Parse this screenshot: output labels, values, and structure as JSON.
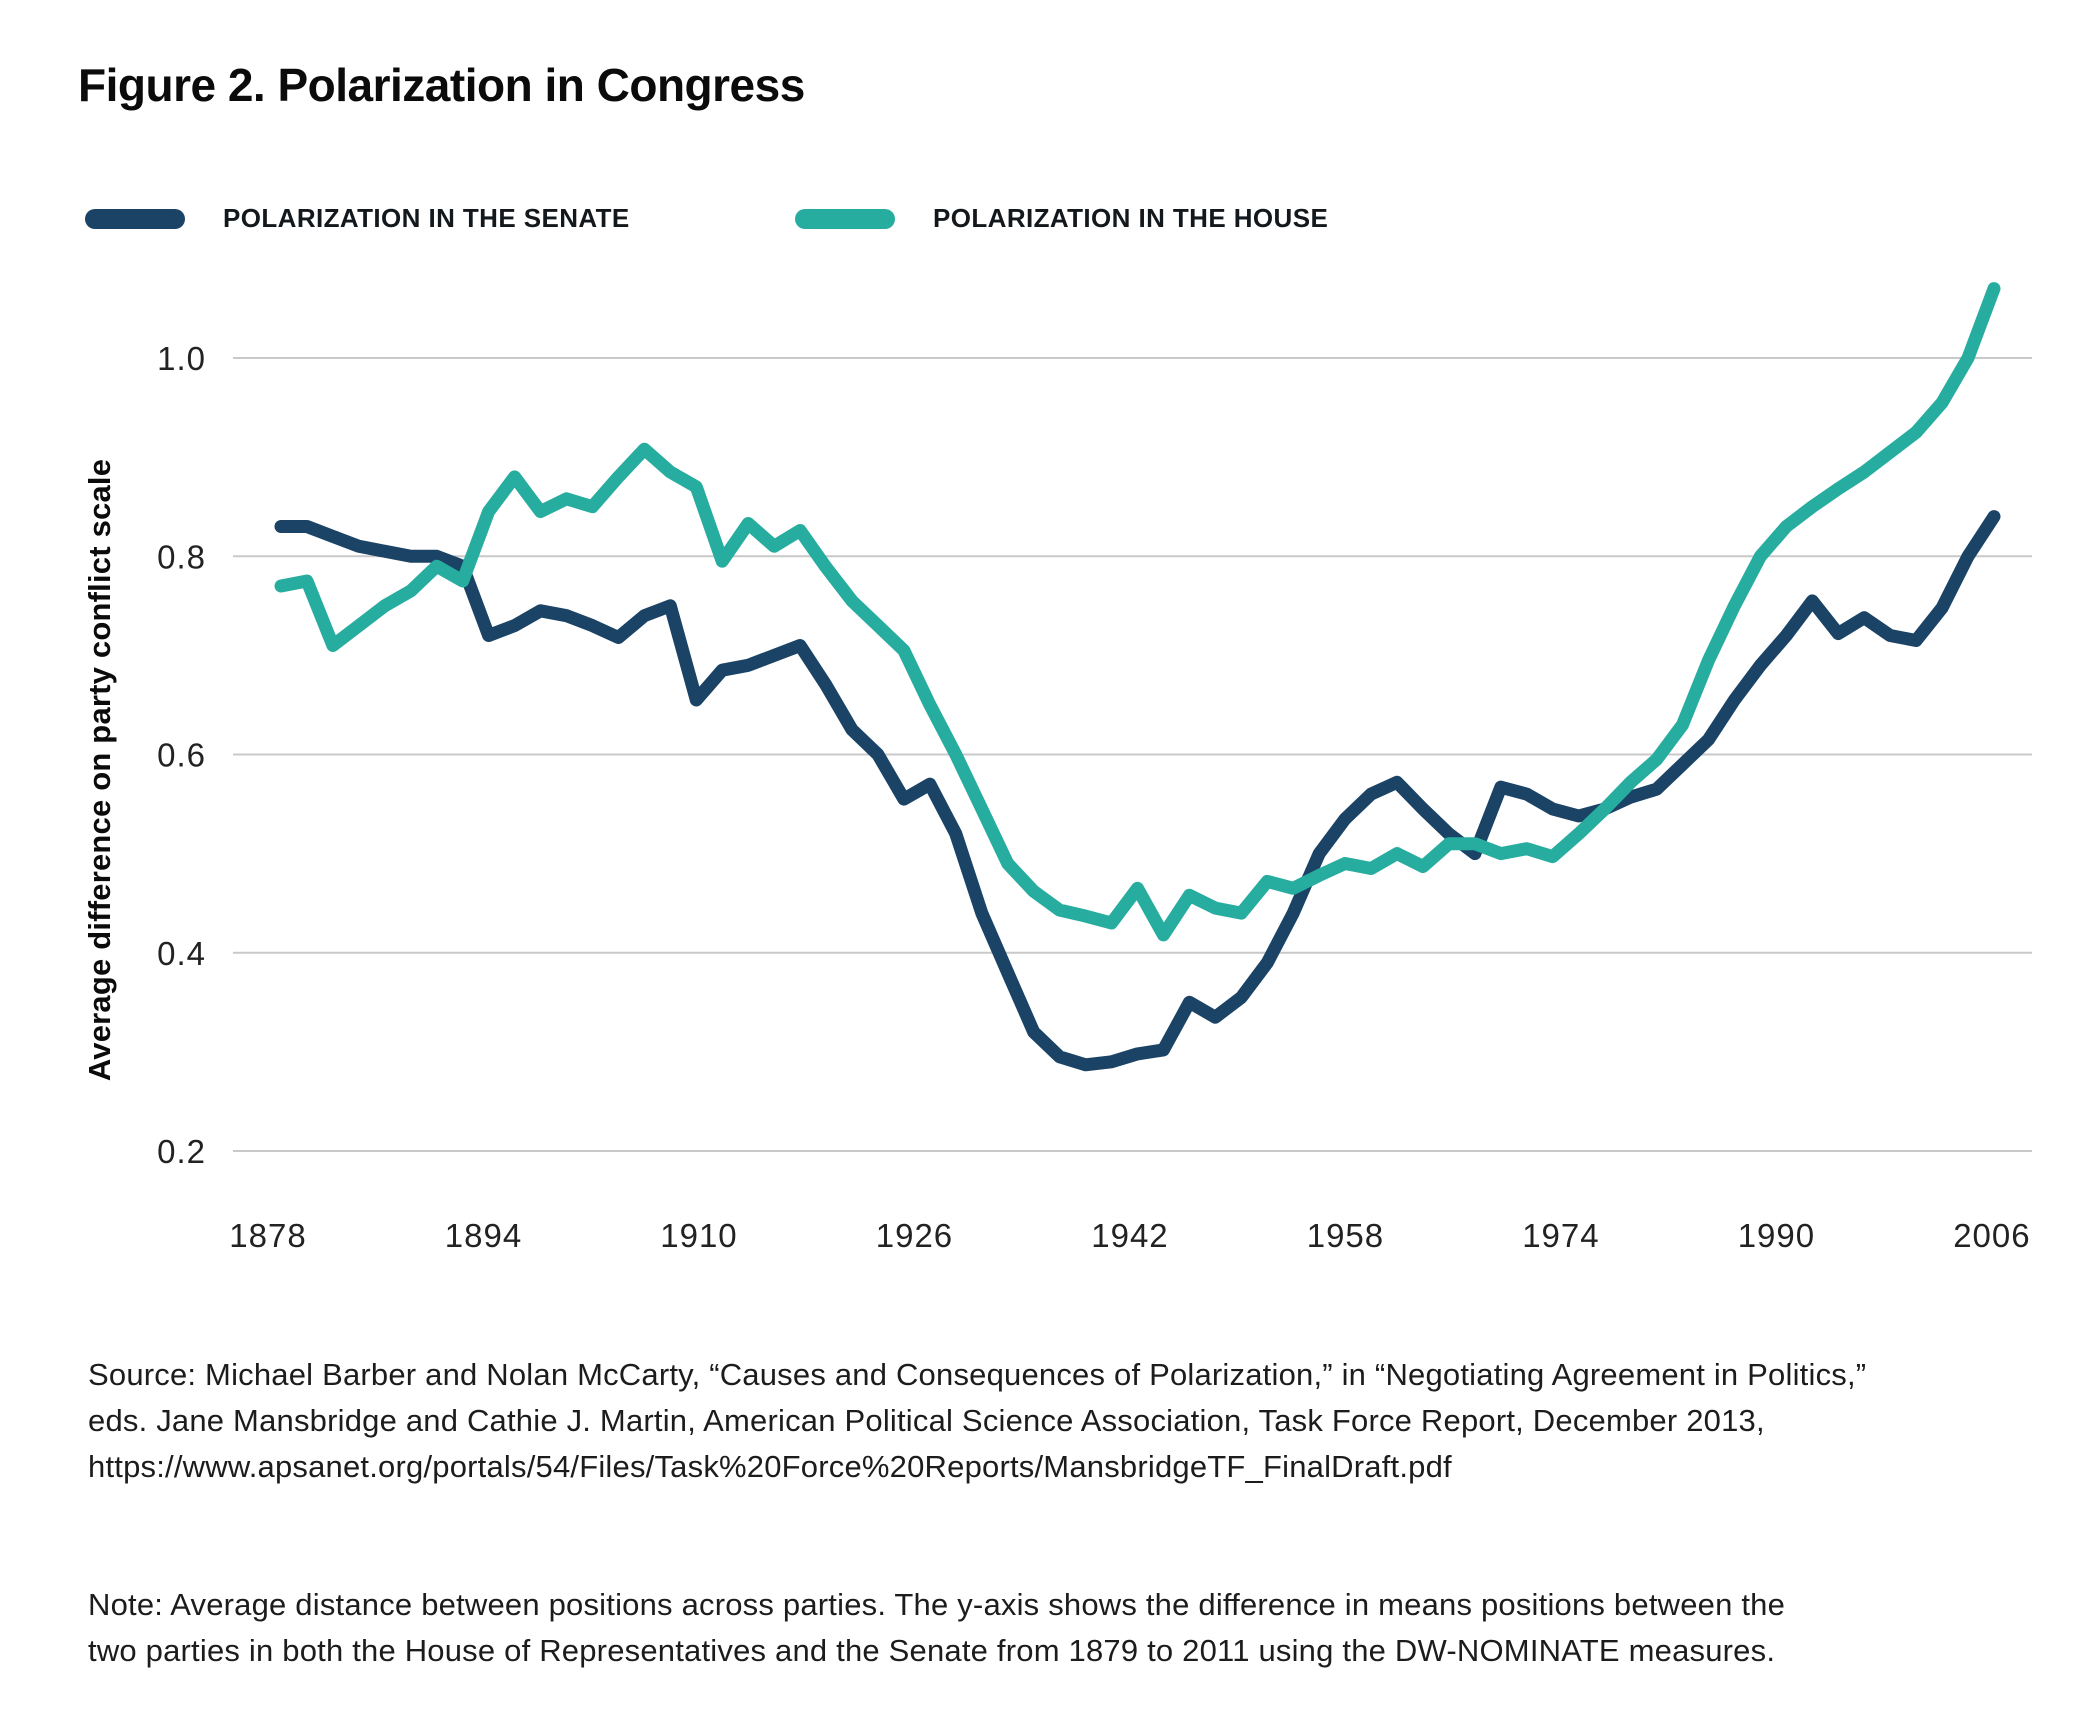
{
  "figure_title": "Figure 2. Polarization in Congress",
  "chart_data": {
    "type": "line",
    "title": "Figure 2. Polarization in Congress",
    "xlabel": "",
    "ylabel": "Average difference on party conflict scale",
    "grid": "horizontal gridlines only, light gray, no axis spines",
    "legend_position": "top, above plot, pill swatches",
    "x_tick_labels": [
      "1878",
      "1894",
      "1910",
      "1926",
      "1942",
      "1958",
      "1974",
      "1990",
      "2006"
    ],
    "y_tick_labels": [
      "1.0",
      "0.8",
      "0.6",
      "0.4",
      "0.2"
    ],
    "y_tick_values": [
      1.0,
      0.8,
      0.6,
      0.4,
      0.2
    ],
    "xlim": [
      1878,
      2011
    ],
    "ylim": [
      0.15,
      1.12
    ],
    "x": [
      1879,
      1881,
      1883,
      1885,
      1887,
      1889,
      1891,
      1893,
      1895,
      1897,
      1899,
      1901,
      1903,
      1905,
      1907,
      1909,
      1911,
      1913,
      1915,
      1917,
      1919,
      1921,
      1923,
      1925,
      1927,
      1929,
      1931,
      1933,
      1935,
      1937,
      1939,
      1941,
      1943,
      1945,
      1947,
      1949,
      1951,
      1953,
      1955,
      1957,
      1959,
      1961,
      1963,
      1965,
      1967,
      1969,
      1971,
      1973,
      1975,
      1977,
      1979,
      1981,
      1983,
      1985,
      1987,
      1989,
      1991,
      1993,
      1995,
      1997,
      1999,
      2001,
      2003,
      2005,
      2007,
      2009,
      2011
    ],
    "series": [
      {
        "name": "POLARIZATION IN THE SENATE",
        "color": "#1a4365",
        "values": [
          0.83,
          0.83,
          0.82,
          0.81,
          0.805,
          0.8,
          0.8,
          0.79,
          0.72,
          0.73,
          0.745,
          0.74,
          0.73,
          0.718,
          0.74,
          0.75,
          0.655,
          0.685,
          0.69,
          0.7,
          0.71,
          0.67,
          0.625,
          0.6,
          0.555,
          0.57,
          0.52,
          0.44,
          0.38,
          0.32,
          0.295,
          0.287,
          0.29,
          0.298,
          0.302,
          0.35,
          0.335,
          0.355,
          0.39,
          0.44,
          0.5,
          0.535,
          0.56,
          0.572,
          0.545,
          0.52,
          0.5,
          0.567,
          0.56,
          0.545,
          0.538,
          0.545,
          0.557,
          0.565,
          0.59,
          0.615,
          0.655,
          0.69,
          0.72,
          0.755,
          0.722,
          0.738,
          0.72,
          0.715,
          0.748,
          0.8,
          0.84
        ]
      },
      {
        "name": "POLARIZATION IN THE HOUSE",
        "color": "#27ad9f",
        "values": [
          0.77,
          0.775,
          0.71,
          0.73,
          0.75,
          0.765,
          0.79,
          0.775,
          0.845,
          0.88,
          0.845,
          0.858,
          0.85,
          0.88,
          0.908,
          0.885,
          0.87,
          0.795,
          0.833,
          0.81,
          0.826,
          0.789,
          0.755,
          0.73,
          0.705,
          0.65,
          0.6,
          0.545,
          0.49,
          0.462,
          0.443,
          0.437,
          0.43,
          0.465,
          0.418,
          0.458,
          0.445,
          0.44,
          0.472,
          0.465,
          0.478,
          0.49,
          0.485,
          0.5,
          0.487,
          0.51,
          0.51,
          0.5,
          0.505,
          0.497,
          0.52,
          0.545,
          0.572,
          0.595,
          0.63,
          0.695,
          0.75,
          0.8,
          0.83,
          0.85,
          0.868,
          0.885,
          0.905,
          0.925,
          0.955,
          1.0,
          1.07
        ]
      }
    ]
  },
  "source": {
    "lines": [
      "Source: Michael Barber and Nolan McCarty, “Causes and Consequences of Polarization,” in “Negotiating Agreement in Politics,”",
      "eds. Jane Mansbridge and Cathie J. Martin, American Political Science Association, Task Force Report, December 2013,",
      "https://www.apsanet.org/portals/54/Files/Task%20Force%20Reports/MansbridgeTF_FinalDraft.pdf"
    ]
  },
  "note": {
    "lines": [
      "Note: Average distance between positions across parties. The y-axis shows the difference in means positions between the",
      "two parties in both the House of Representatives and the Senate from 1879 to 2011 using the DW-NOMINATE measures.",
      ""
    ]
  },
  "colors": {
    "senate_line": "#1a4365",
    "house_line": "#27ad9f",
    "gridline": "#c9c9c9",
    "text": "#1c1c1c",
    "background": "#ffffff"
  }
}
